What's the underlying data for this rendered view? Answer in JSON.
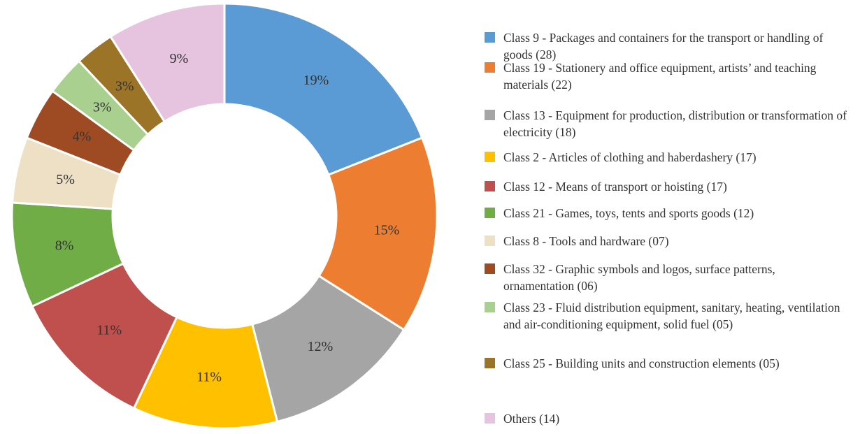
{
  "chart_data": {
    "type": "pie",
    "categories": [
      "Class 9 - Packages and containers for the transport or handling of goods (28)",
      "Class 19 - Stationery and office equipment, artists’ and teaching materials (22)",
      "Class 13 - Equipment for production, distribution or transformation of electricity (18)",
      "Class 2 - Articles of clothing and haberdashery (17)",
      "Class 12 - Means of transport or hoisting (17)",
      "Class 21 - Games, toys, tents and sports goods (12)",
      "Class 8 - Tools and hardware (07)",
      "Class 32 - Graphic symbols and logos, surface patterns, ornamentation (06)",
      "Class 23 - Fluid distribution equipment, sanitary, heating, ventilation and air-conditioning equipment, solid fuel (05)",
      "Class 25 - Building units and construction elements (05)",
      "Others (14)"
    ],
    "values": [
      19,
      15,
      12,
      11,
      11,
      8,
      5,
      4,
      3,
      3,
      9
    ],
    "value_labels": [
      "19%",
      "15%",
      "12%",
      "11%",
      "11%",
      "8%",
      "5%",
      "4%",
      "3%",
      "3%",
      "9%"
    ],
    "colors": [
      "#5b9bd5",
      "#ed7d31",
      "#a5a5a5",
      "#ffc000",
      "#c0504d",
      "#70ad47",
      "#ede0c4",
      "#9e4a23",
      "#a9d08e",
      "#9c7428",
      "#e6c3de"
    ],
    "donut": true
  }
}
